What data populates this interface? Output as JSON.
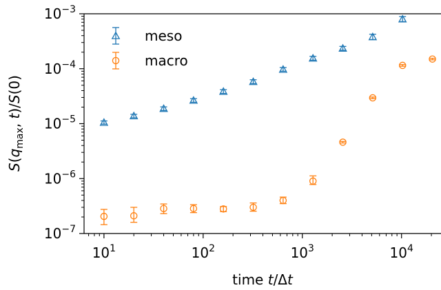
{
  "chart_data": {
    "type": "scatter",
    "title": "",
    "xlabel": "time t/Δt",
    "ylabel": "S(q_max, t)/S(0)",
    "xscale": "log",
    "yscale": "log",
    "xlim": [
      6.3,
      25000
    ],
    "ylim": [
      1e-07,
      0.001
    ],
    "xticks": [
      {
        "value": 10,
        "mantissa": "10",
        "exp": "1"
      },
      {
        "value": 100,
        "mantissa": "10",
        "exp": "2"
      },
      {
        "value": 1000,
        "mantissa": "10",
        "exp": "3"
      },
      {
        "value": 10000,
        "mantissa": "10",
        "exp": "4"
      }
    ],
    "yticks": [
      {
        "value": 1e-07,
        "mantissa": "10",
        "exp": "−7"
      },
      {
        "value": 1e-06,
        "mantissa": "10",
        "exp": "−6"
      },
      {
        "value": 1e-05,
        "mantissa": "10",
        "exp": "−5"
      },
      {
        "value": 0.0001,
        "mantissa": "10",
        "exp": "−4"
      },
      {
        "value": 0.001,
        "mantissa": "10",
        "exp": "−3"
      }
    ],
    "grid": false,
    "legend_position": "top-left",
    "series": [
      {
        "name": "meso",
        "marker": "triangle",
        "color": "#1f77b4",
        "points": [
          {
            "x": 10,
            "y": 1.05e-05,
            "lo": 9.8e-06,
            "hi": 1.12e-05
          },
          {
            "x": 20,
            "y": 1.38e-05,
            "lo": 1.28e-05,
            "hi": 1.48e-05
          },
          {
            "x": 40,
            "y": 1.88e-05,
            "lo": 1.74e-05,
            "hi": 2.02e-05
          },
          {
            "x": 80,
            "y": 2.65e-05,
            "lo": 2.45e-05,
            "hi": 2.85e-05
          },
          {
            "x": 160,
            "y": 3.85e-05,
            "lo": 3.55e-05,
            "hi": 4.15e-05
          },
          {
            "x": 320,
            "y": 5.8e-05,
            "lo": 5.35e-05,
            "hi": 6.3e-05
          },
          {
            "x": 640,
            "y": 9.7e-05,
            "lo": 9e-05,
            "hi": 0.000105
          },
          {
            "x": 1280,
            "y": 0.000155,
            "lo": 0.000143,
            "hi": 0.000168
          },
          {
            "x": 2560,
            "y": 0.000235,
            "lo": 0.000217,
            "hi": 0.000255
          },
          {
            "x": 5120,
            "y": 0.00038,
            "lo": 0.00034,
            "hi": 0.000425
          },
          {
            "x": 10240,
            "y": 0.0008,
            "lo": 0.00072,
            "hi": 0.00089
          }
        ]
      },
      {
        "name": "macro",
        "marker": "circle",
        "color": "#ff7f0e",
        "points": [
          {
            "x": 10,
            "y": 2.05e-07,
            "lo": 1.45e-07,
            "hi": 2.75e-07
          },
          {
            "x": 20,
            "y": 2.1e-07,
            "lo": 1.6e-07,
            "hi": 3e-07
          },
          {
            "x": 40,
            "y": 2.85e-07,
            "lo": 2.3e-07,
            "hi": 3.45e-07
          },
          {
            "x": 80,
            "y": 2.85e-07,
            "lo": 2.4e-07,
            "hi": 3.35e-07
          },
          {
            "x": 160,
            "y": 2.8e-07,
            "lo": 2.5e-07,
            "hi": 3.1e-07
          },
          {
            "x": 320,
            "y": 3e-07,
            "lo": 2.55e-07,
            "hi": 3.6e-07
          },
          {
            "x": 640,
            "y": 4e-07,
            "lo": 3.5e-07,
            "hi": 4.6e-07
          },
          {
            "x": 1280,
            "y": 9e-07,
            "lo": 7.8e-07,
            "hi": 1.12e-06
          },
          {
            "x": 2560,
            "y": 4.6e-06,
            "lo": 4.45e-06,
            "hi": 4.75e-06
          },
          {
            "x": 5120,
            "y": 2.95e-05,
            "lo": 2.85e-05,
            "hi": 3.05e-05
          },
          {
            "x": 10240,
            "y": 0.000115,
            "lo": 0.000111,
            "hi": 0.000119
          },
          {
            "x": 20480,
            "y": 0.00015,
            "lo": 0.000145,
            "hi": 0.000155
          }
        ]
      }
    ]
  }
}
